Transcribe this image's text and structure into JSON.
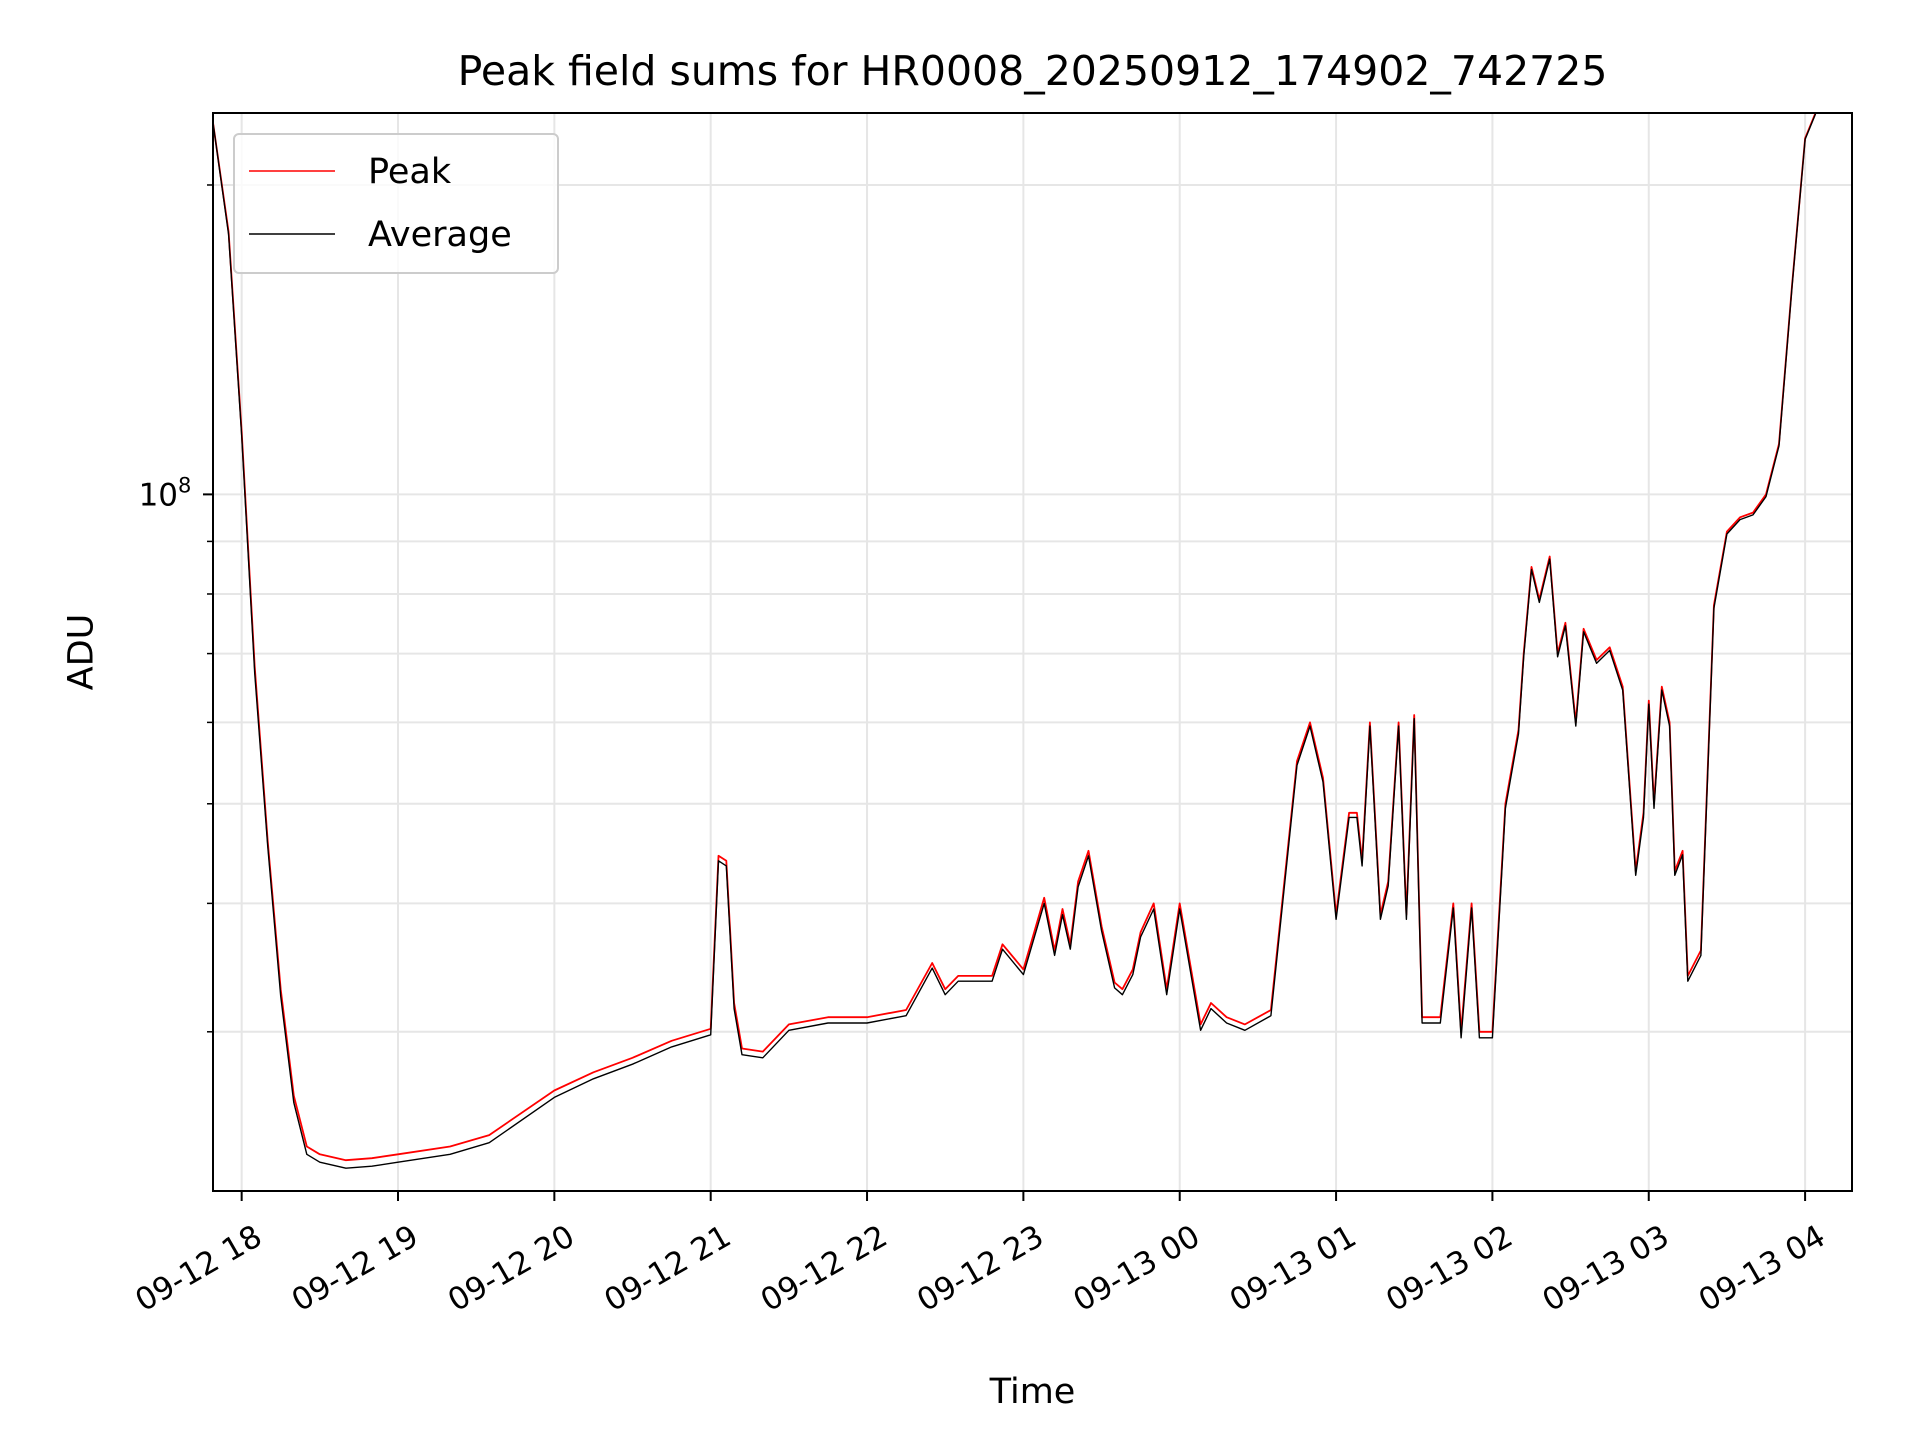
{
  "chart_data": {
    "type": "line",
    "title": "Peak field sums for HR0008_20250912_174902_742725",
    "xlabel": "Time",
    "ylabel": "ADU",
    "yscale": "log",
    "ylim": [
      21000000,
      235000000
    ],
    "xlim": [
      "2025-09-12 17:49",
      "2025-09-13 04:18"
    ],
    "x_ticks": [
      {
        "t": "2025-09-12 18:00",
        "label": "09-12 18"
      },
      {
        "t": "2025-09-12 19:00",
        "label": "09-12 19"
      },
      {
        "t": "2025-09-12 20:00",
        "label": "09-12 20"
      },
      {
        "t": "2025-09-12 21:00",
        "label": "09-12 21"
      },
      {
        "t": "2025-09-12 22:00",
        "label": "09-12 22"
      },
      {
        "t": "2025-09-12 23:00",
        "label": "09-12 23"
      },
      {
        "t": "2025-09-13 00:00",
        "label": "09-13 00"
      },
      {
        "t": "2025-09-13 01:00",
        "label": "09-13 01"
      },
      {
        "t": "2025-09-13 02:00",
        "label": "09-13 02"
      },
      {
        "t": "2025-09-13 03:00",
        "label": "09-13 03"
      },
      {
        "t": "2025-09-13 04:00",
        "label": "09-13 04"
      }
    ],
    "y_major_tick": {
      "value": 100000000,
      "base": "10",
      "exp": "8"
    },
    "y_minor_ticks": [
      30000000,
      40000000,
      50000000,
      60000000,
      70000000,
      80000000,
      90000000,
      200000000
    ],
    "grid": true,
    "legend_position": "top-left",
    "series": [
      {
        "name": "Peak",
        "color": "#ff0000",
        "x": [
          "2025-09-12 17:49",
          "2025-09-12 17:55",
          "2025-09-12 18:00",
          "2025-09-12 18:05",
          "2025-09-12 18:10",
          "2025-09-12 18:15",
          "2025-09-12 18:20",
          "2025-09-12 18:25",
          "2025-09-12 18:30",
          "2025-09-12 18:40",
          "2025-09-12 18:50",
          "2025-09-12 19:00",
          "2025-09-12 19:20",
          "2025-09-12 19:35",
          "2025-09-12 20:00",
          "2025-09-12 20:15",
          "2025-09-12 20:30",
          "2025-09-12 20:45",
          "2025-09-12 21:00",
          "2025-09-12 21:03",
          "2025-09-12 21:06",
          "2025-09-12 21:09",
          "2025-09-12 21:12",
          "2025-09-12 21:20",
          "2025-09-12 21:30",
          "2025-09-12 21:45",
          "2025-09-12 22:00",
          "2025-09-12 22:15",
          "2025-09-12 22:25",
          "2025-09-12 22:30",
          "2025-09-12 22:35",
          "2025-09-12 22:48",
          "2025-09-12 22:52",
          "2025-09-12 23:00",
          "2025-09-12 23:08",
          "2025-09-12 23:12",
          "2025-09-12 23:15",
          "2025-09-12 23:18",
          "2025-09-12 23:21",
          "2025-09-12 23:25",
          "2025-09-12 23:30",
          "2025-09-12 23:35",
          "2025-09-12 23:38",
          "2025-09-12 23:42",
          "2025-09-12 23:45",
          "2025-09-12 23:50",
          "2025-09-12 23:55",
          "2025-09-13 00:00",
          "2025-09-13 00:08",
          "2025-09-13 00:12",
          "2025-09-13 00:18",
          "2025-09-13 00:25",
          "2025-09-13 00:35",
          "2025-09-13 00:45",
          "2025-09-13 00:50",
          "2025-09-13 00:55",
          "2025-09-13 01:00",
          "2025-09-13 01:05",
          "2025-09-13 01:08",
          "2025-09-13 01:10",
          "2025-09-13 01:13",
          "2025-09-13 01:17",
          "2025-09-13 01:20",
          "2025-09-13 01:24",
          "2025-09-13 01:27",
          "2025-09-13 01:30",
          "2025-09-13 01:33",
          "2025-09-13 01:35",
          "2025-09-13 01:40",
          "2025-09-13 01:45",
          "2025-09-13 01:48",
          "2025-09-13 01:52",
          "2025-09-13 01:55",
          "2025-09-13 02:00",
          "2025-09-13 02:05",
          "2025-09-13 02:10",
          "2025-09-13 02:12",
          "2025-09-13 02:15",
          "2025-09-13 02:18",
          "2025-09-13 02:22",
          "2025-09-13 02:25",
          "2025-09-13 02:28",
          "2025-09-13 02:32",
          "2025-09-13 02:35",
          "2025-09-13 02:40",
          "2025-09-13 02:45",
          "2025-09-13 02:50",
          "2025-09-13 02:55",
          "2025-09-13 02:58",
          "2025-09-13 03:00",
          "2025-09-13 03:02",
          "2025-09-13 03:05",
          "2025-09-13 03:08",
          "2025-09-13 03:10",
          "2025-09-13 03:13",
          "2025-09-13 03:15",
          "2025-09-13 03:20",
          "2025-09-13 03:25",
          "2025-09-13 03:30",
          "2025-09-13 03:35",
          "2025-09-13 03:40",
          "2025-09-13 03:45",
          "2025-09-13 03:50",
          "2025-09-13 03:55",
          "2025-09-13 04:00",
          "2025-09-13 04:04"
        ],
        "values": [
          230000000,
          180000000,
          115000000,
          68000000,
          46000000,
          33000000,
          26000000,
          23200000,
          22800000,
          22500000,
          22600000,
          22800000,
          23200000,
          23800000,
          26300000,
          27400000,
          28300000,
          29400000,
          30200000,
          44500000,
          44000000,
          32000000,
          28900000,
          28700000,
          30500000,
          31000000,
          31000000,
          31500000,
          35000000,
          33000000,
          34000000,
          34000000,
          36500000,
          34500000,
          40500000,
          36000000,
          39500000,
          36500000,
          42000000,
          45000000,
          38000000,
          33500000,
          33000000,
          34500000,
          37500000,
          40000000,
          33000000,
          40000000,
          30500000,
          32000000,
          31000000,
          30500000,
          31500000,
          55000000,
          60000000,
          53000000,
          39000000,
          49000000,
          49000000,
          44000000,
          60000000,
          39000000,
          42000000,
          60000000,
          39000000,
          61000000,
          31000000,
          31000000,
          31000000,
          40000000,
          30000000,
          40000000,
          30000000,
          30000000,
          50000000,
          59000000,
          70000000,
          85000000,
          79000000,
          87000000,
          70000000,
          75000000,
          60000000,
          74000000,
          69000000,
          71000000,
          65000000,
          43000000,
          49000000,
          63000000,
          50000000,
          65000000,
          60000000,
          43000000,
          45000000,
          34000000,
          36000000,
          78000000,
          92000000,
          95000000,
          96000000,
          100000000,
          112000000,
          160000000,
          222000000,
          235000000
        ]
      },
      {
        "name": "Average",
        "color": "#000000",
        "x": [
          "2025-09-12 17:49",
          "2025-09-12 17:55",
          "2025-09-12 18:00",
          "2025-09-12 18:05",
          "2025-09-12 18:10",
          "2025-09-12 18:15",
          "2025-09-12 18:20",
          "2025-09-12 18:25",
          "2025-09-12 18:30",
          "2025-09-12 18:40",
          "2025-09-12 18:50",
          "2025-09-12 19:00",
          "2025-09-12 19:20",
          "2025-09-12 19:35",
          "2025-09-12 20:00",
          "2025-09-12 20:15",
          "2025-09-12 20:30",
          "2025-09-12 20:45",
          "2025-09-12 21:00",
          "2025-09-12 21:03",
          "2025-09-12 21:06",
          "2025-09-12 21:09",
          "2025-09-12 21:12",
          "2025-09-12 21:20",
          "2025-09-12 21:30",
          "2025-09-12 21:45",
          "2025-09-12 22:00",
          "2025-09-12 22:15",
          "2025-09-12 22:25",
          "2025-09-12 22:30",
          "2025-09-12 22:35",
          "2025-09-12 22:48",
          "2025-09-12 22:52",
          "2025-09-12 23:00",
          "2025-09-12 23:08",
          "2025-09-12 23:12",
          "2025-09-12 23:15",
          "2025-09-12 23:18",
          "2025-09-12 23:21",
          "2025-09-12 23:25",
          "2025-09-12 23:30",
          "2025-09-12 23:35",
          "2025-09-12 23:38",
          "2025-09-12 23:42",
          "2025-09-12 23:45",
          "2025-09-12 23:50",
          "2025-09-12 23:55",
          "2025-09-13 00:00",
          "2025-09-13 00:08",
          "2025-09-13 00:12",
          "2025-09-13 00:18",
          "2025-09-13 00:25",
          "2025-09-13 00:35",
          "2025-09-13 00:45",
          "2025-09-13 00:50",
          "2025-09-13 00:55",
          "2025-09-13 01:00",
          "2025-09-13 01:05",
          "2025-09-13 01:08",
          "2025-09-13 01:10",
          "2025-09-13 01:13",
          "2025-09-13 01:17",
          "2025-09-13 01:20",
          "2025-09-13 01:24",
          "2025-09-13 01:27",
          "2025-09-13 01:30",
          "2025-09-13 01:33",
          "2025-09-13 01:35",
          "2025-09-13 01:40",
          "2025-09-13 01:45",
          "2025-09-13 01:48",
          "2025-09-13 01:52",
          "2025-09-13 01:55",
          "2025-09-13 02:00",
          "2025-09-13 02:05",
          "2025-09-13 02:10",
          "2025-09-13 02:12",
          "2025-09-13 02:15",
          "2025-09-13 02:18",
          "2025-09-13 02:22",
          "2025-09-13 02:25",
          "2025-09-13 02:28",
          "2025-09-13 02:32",
          "2025-09-13 02:35",
          "2025-09-13 02:40",
          "2025-09-13 02:45",
          "2025-09-13 02:50",
          "2025-09-13 02:55",
          "2025-09-13 02:58",
          "2025-09-13 03:00",
          "2025-09-13 03:02",
          "2025-09-13 03:05",
          "2025-09-13 03:08",
          "2025-09-13 03:10",
          "2025-09-13 03:13",
          "2025-09-13 03:15",
          "2025-09-13 03:20",
          "2025-09-13 03:25",
          "2025-09-13 03:30",
          "2025-09-13 03:35",
          "2025-09-13 03:40",
          "2025-09-13 03:45",
          "2025-09-13 03:50",
          "2025-09-13 03:55",
          "2025-09-13 04:00",
          "2025-09-13 04:04"
        ],
        "values": [
          230000000,
          179000000,
          114000000,
          67000000,
          45500000,
          32500000,
          25600000,
          22800000,
          22400000,
          22100000,
          22200000,
          22400000,
          22800000,
          23400000,
          25900000,
          27000000,
          27900000,
          29000000,
          29800000,
          44000000,
          43500000,
          31600000,
          28500000,
          28300000,
          30100000,
          30600000,
          30600000,
          31100000,
          34600000,
          32600000,
          33600000,
          33600000,
          36100000,
          34100000,
          40000000,
          35600000,
          39000000,
          36100000,
          41500000,
          44500000,
          37600000,
          33100000,
          32600000,
          34100000,
          37100000,
          39500000,
          32600000,
          39500000,
          30100000,
          31600000,
          30600000,
          30100000,
          31100000,
          54500000,
          59500000,
          52500000,
          38600000,
          48500000,
          48500000,
          43500000,
          59500000,
          38600000,
          41600000,
          59500000,
          38600000,
          60500000,
          30600000,
          30600000,
          30600000,
          39600000,
          29600000,
          39600000,
          29600000,
          29600000,
          49500000,
          58500000,
          69500000,
          84500000,
          78500000,
          86500000,
          69500000,
          74500000,
          59500000,
          73500000,
          68500000,
          70500000,
          64500000,
          42600000,
          48500000,
          62500000,
          49500000,
          64500000,
          59500000,
          42600000,
          44600000,
          33600000,
          35600000,
          77500000,
          91500000,
          94500000,
          95500000,
          99500000,
          111500000,
          159500000,
          221500000,
          234500000
        ]
      }
    ]
  }
}
